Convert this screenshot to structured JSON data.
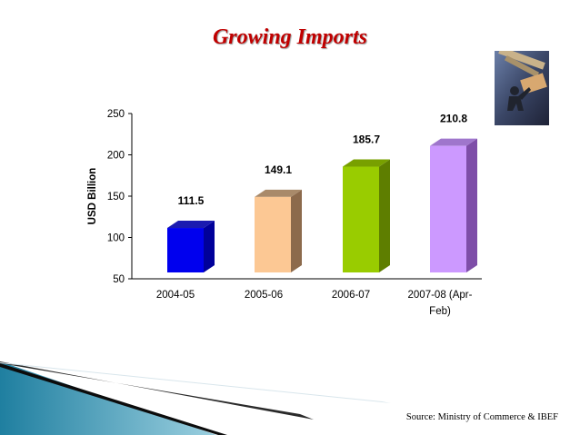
{
  "slide": {
    "title": "Growing Imports",
    "source": "Source: Ministry of Commerce & IBEF"
  },
  "photo": {
    "icon": "stock-trader-photo"
  },
  "chart_data": {
    "type": "bar",
    "categories": [
      "2004-05",
      "2005-06",
      "2006-07",
      "2007-08 (Apr-Feb)"
    ],
    "category_lines": [
      [
        "2004-05"
      ],
      [
        "2005-06"
      ],
      [
        "2006-07"
      ],
      [
        "2007-08 (Apr-",
        "Feb)"
      ]
    ],
    "values": [
      111.5,
      149.1,
      185.7,
      210.8
    ],
    "data_labels": [
      "111.5",
      "149.1",
      "185.7",
      "210.8"
    ],
    "ylabel": "USD Billion",
    "ylim": [
      50,
      250
    ],
    "yticks": [
      50,
      100,
      150,
      200,
      250
    ],
    "grid": false,
    "bar_colors": [
      "#0000ee",
      "#fcc894",
      "#99cc00",
      "#cc99ff"
    ],
    "bar_side_colors": [
      "#00009a",
      "#8c6a4c",
      "#5e7e00",
      "#7e4ea8"
    ],
    "bar_top_colors": [
      "#1a1ab0",
      "#a98a6a",
      "#78a000",
      "#9f76cc"
    ]
  },
  "colors": {
    "title": "#c00000"
  }
}
